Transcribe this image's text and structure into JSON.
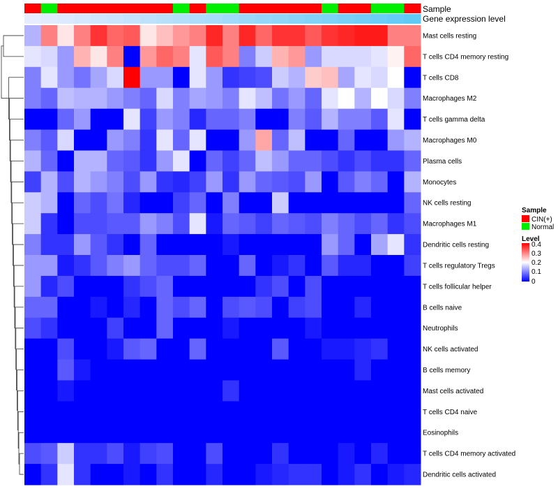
{
  "chart_data": {
    "type": "heatmap",
    "title": "",
    "annotation_labels": {
      "sample": "Sample",
      "expression": "Gene expression level"
    },
    "columns": 24,
    "sample_annotation": [
      "CIN(+)",
      "Normal",
      "CIN(+)",
      "CIN(+)",
      "CIN(+)",
      "CIN(+)",
      "CIN(+)",
      "CIN(+)",
      "CIN(+)",
      "Normal",
      "CIN(+)",
      "Normal",
      "Normal",
      "CIN(+)",
      "CIN(+)",
      "CIN(+)",
      "CIN(+)",
      "CIN(+)",
      "Normal",
      "CIN(+)",
      "CIN(+)",
      "Normal",
      "Normal",
      "CIN(+)"
    ],
    "expression_annotation": [
      0.02,
      0.04,
      0.06,
      0.08,
      0.1,
      0.12,
      0.14,
      0.16,
      0.18,
      0.2,
      0.22,
      0.24,
      0.26,
      0.28,
      0.3,
      0.32,
      0.34,
      0.36,
      0.38,
      0.4,
      0.42,
      0.44,
      0.46,
      0.48
    ],
    "rows": [
      "Mast cells resting",
      "T cells CD4 memory resting",
      "T cells CD8",
      "Macrophages M2",
      "T cells gamma delta",
      "Macrophages M0",
      "Plasma cells",
      "Monocytes",
      "NK cells resting",
      "Macrophages M1",
      "Dendritic cells resting",
      "T cells regulatory  Tregs",
      "T cells follicular helper",
      "B cells naive",
      "Neutrophils",
      "NK cells activated",
      "B cells memory",
      "Mast cells activated",
      "T cells CD4 naive",
      "Eosinophils",
      "T cells CD4 memory activated",
      "Dendritic cells activated"
    ],
    "values": [
      [
        0.14,
        0.3,
        0.22,
        0.3,
        0.36,
        0.32,
        0.33,
        0.22,
        0.25,
        0.28,
        0.3,
        0.37,
        0.3,
        0.37,
        0.32,
        0.36,
        0.36,
        0.33,
        0.36,
        0.37,
        0.38,
        0.38,
        0.3,
        0.3
      ],
      [
        0.18,
        0.17,
        0.12,
        0.26,
        0.22,
        0.3,
        0.0,
        0.28,
        0.32,
        0.3,
        0.18,
        0.33,
        0.3,
        0.1,
        0.16,
        0.26,
        0.28,
        0.12,
        0.17,
        0.17,
        0.17,
        0.18,
        0.21,
        0.32
      ],
      [
        0.1,
        0.18,
        0.12,
        0.09,
        0.13,
        0.17,
        0.4,
        0.12,
        0.12,
        0.0,
        0.18,
        0.12,
        0.04,
        0.05,
        0.06,
        0.16,
        0.14,
        0.24,
        0.25,
        0.13,
        0.18,
        0.17,
        0.2,
        0.0
      ],
      [
        0.1,
        0.08,
        0.15,
        0.14,
        0.14,
        0.12,
        0.1,
        0.08,
        0.17,
        0.1,
        0.13,
        0.12,
        0.1,
        0.18,
        0.15,
        0.09,
        0.12,
        0.08,
        0.18,
        0.2,
        0.14,
        0.2,
        0.17,
        0.1
      ],
      [
        0.0,
        0.0,
        0.08,
        0.12,
        0.0,
        0.0,
        0.18,
        0.05,
        0.12,
        0.1,
        0.03,
        0.08,
        0.08,
        0.1,
        0.0,
        0.0,
        0.1,
        0.07,
        0.14,
        0.1,
        0.1,
        0.07,
        0.18,
        0.0
      ],
      [
        0.1,
        0.07,
        0.17,
        0.0,
        0.0,
        0.12,
        0.1,
        0.04,
        0.18,
        0.08,
        0.18,
        0.0,
        0.0,
        0.12,
        0.27,
        0.08,
        0.15,
        0.0,
        0.0,
        0.08,
        0.0,
        0.0,
        0.12,
        0.14
      ],
      [
        0.14,
        0.08,
        0.0,
        0.14,
        0.14,
        0.08,
        0.07,
        0.04,
        0.12,
        0.18,
        0.0,
        0.08,
        0.05,
        0.08,
        0.15,
        0.12,
        0.08,
        0.08,
        0.06,
        0.04,
        0.06,
        0.04,
        0.04,
        0.08
      ],
      [
        0.05,
        0.14,
        0.06,
        0.14,
        0.12,
        0.1,
        0.06,
        0.12,
        0.04,
        0.03,
        0.05,
        0.12,
        0.04,
        0.12,
        0.08,
        0.07,
        0.06,
        0.12,
        0.0,
        0.07,
        0.1,
        0.08,
        0.0,
        0.14
      ],
      [
        0.16,
        0.14,
        0.0,
        0.08,
        0.06,
        0.09,
        0.03,
        0.0,
        0.0,
        0.05,
        0.08,
        0.0,
        0.1,
        0.0,
        0.0,
        0.16,
        0.0,
        0.0,
        0.0,
        0.0,
        0.0,
        0.0,
        0.0,
        0.08
      ],
      [
        0.16,
        0.04,
        0.0,
        0.06,
        0.06,
        0.07,
        0.07,
        0.12,
        0.1,
        0.06,
        0.18,
        0.02,
        0.08,
        0.07,
        0.05,
        0.08,
        0.07,
        0.06,
        0.1,
        0.08,
        0.06,
        0.08,
        0.04,
        0.06
      ],
      [
        0.1,
        0.04,
        0.04,
        0.12,
        0.07,
        0.04,
        0.0,
        0.08,
        0.0,
        0.0,
        0.0,
        0.0,
        0.02,
        0.0,
        0.0,
        0.0,
        0.0,
        0.0,
        0.12,
        0.08,
        0.0,
        0.13,
        0.18,
        0.04
      ],
      [
        0.12,
        0.12,
        0.02,
        0.04,
        0.07,
        0.1,
        0.12,
        0.08,
        0.06,
        0.06,
        0.08,
        0.0,
        0.0,
        0.08,
        0.0,
        0.02,
        0.04,
        0.0,
        0.07,
        0.03,
        0.03,
        0.0,
        0.0,
        0.05
      ],
      [
        0.12,
        0.03,
        0.06,
        0.0,
        0.0,
        0.0,
        0.04,
        0.06,
        0.08,
        0.0,
        0.0,
        0.0,
        0.0,
        0.0,
        0.04,
        0.06,
        0.0,
        0.06,
        0.0,
        0.0,
        0.0,
        0.0,
        0.0,
        0.0
      ],
      [
        0.08,
        0.08,
        0.0,
        0.0,
        0.02,
        0.0,
        0.03,
        0.0,
        0.08,
        0.06,
        0.08,
        0.0,
        0.06,
        0.07,
        0.06,
        0.0,
        0.05,
        0.06,
        0.0,
        0.0,
        0.03,
        0.0,
        0.0,
        0.0
      ],
      [
        0.06,
        0.04,
        0.0,
        0.0,
        0.0,
        0.05,
        0.0,
        0.0,
        0.08,
        0.0,
        0.0,
        0.0,
        0.02,
        0.0,
        0.0,
        0.0,
        0.0,
        0.02,
        0.0,
        0.0,
        0.0,
        0.0,
        0.0,
        0.0
      ],
      [
        0.0,
        0.0,
        0.06,
        0.0,
        0.0,
        0.02,
        0.07,
        0.08,
        0.0,
        0.0,
        0.08,
        0.0,
        0.0,
        0.0,
        0.0,
        0.07,
        0.0,
        0.0,
        0.02,
        0.02,
        0.03,
        0.04,
        0.0,
        0.0
      ],
      [
        0.0,
        0.0,
        0.07,
        0.02,
        0.0,
        0.0,
        0.0,
        0.0,
        0.0,
        0.0,
        0.0,
        0.0,
        0.0,
        0.0,
        0.0,
        0.0,
        0.0,
        0.0,
        0.0,
        0.0,
        0.03,
        0.0,
        0.0,
        0.0
      ],
      [
        0.0,
        0.0,
        0.02,
        0.0,
        0.0,
        0.0,
        0.0,
        0.0,
        0.0,
        0.0,
        0.0,
        0.0,
        0.04,
        0.0,
        0.0,
        0.0,
        0.0,
        0.0,
        0.0,
        0.0,
        0.0,
        0.0,
        0.0,
        0.0
      ],
      [
        0.0,
        0.0,
        0.0,
        0.0,
        0.0,
        0.0,
        0.0,
        0.0,
        0.0,
        0.0,
        0.0,
        0.0,
        0.0,
        0.0,
        0.0,
        0.0,
        0.0,
        0.0,
        0.0,
        0.0,
        0.0,
        0.0,
        0.0,
        0.0
      ],
      [
        0.0,
        0.0,
        0.0,
        0.0,
        0.0,
        0.0,
        0.0,
        0.0,
        0.0,
        0.0,
        0.0,
        0.0,
        0.0,
        0.0,
        0.0,
        0.0,
        0.0,
        0.0,
        0.0,
        0.0,
        0.0,
        0.0,
        0.0,
        0.0
      ],
      [
        0.06,
        0.07,
        0.16,
        0.04,
        0.04,
        0.06,
        0.02,
        0.05,
        0.06,
        0.0,
        0.0,
        0.06,
        0.0,
        0.0,
        0.0,
        0.04,
        0.0,
        0.0,
        0.0,
        0.02,
        0.0,
        0.03,
        0.0,
        0.0
      ],
      [
        0.0,
        0.04,
        0.18,
        0.04,
        0.0,
        0.0,
        0.02,
        0.0,
        0.04,
        0.0,
        0.0,
        0.03,
        0.0,
        0.0,
        0.02,
        0.03,
        0.04,
        0.04,
        0.0,
        0.02,
        0.04,
        0.0,
        0.02,
        0.03
      ]
    ],
    "legend": {
      "sample_title": "Sample",
      "sample_items": [
        {
          "label": "CIN(+)",
          "color": "#ff0000"
        },
        {
          "label": "Normal",
          "color": "#00ee00"
        }
      ],
      "level_title": "Level",
      "level_ticks": [
        "0.4",
        "0.3",
        "0.2",
        "0.1",
        "0"
      ],
      "range": [
        0,
        0.4
      ],
      "colors": {
        "low": "#0000ff",
        "mid": "#ffffff",
        "high": "#ff0000"
      }
    }
  }
}
